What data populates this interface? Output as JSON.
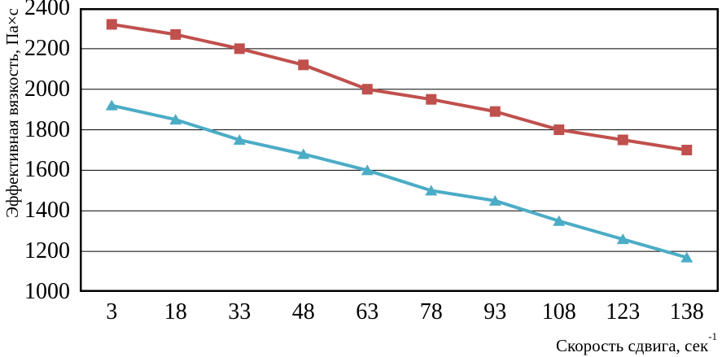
{
  "figure": {
    "background": "#ffffff",
    "axis_color": "#000000",
    "grid_color": "#000000"
  },
  "chart_data": {
    "type": "line",
    "title": "",
    "xlabel": "Скорость сдвига, сек",
    "xlabel_sup": "-1",
    "ylabel": "Эффективная вязкость, Па×с",
    "x": [
      3,
      18,
      33,
      48,
      63,
      78,
      93,
      108,
      123,
      138
    ],
    "series": [
      {
        "name": "series-red-squares",
        "marker": "square",
        "color": "#c0504d",
        "values": [
          2320,
          2270,
          2200,
          2120,
          2000,
          1950,
          1890,
          1800,
          1750,
          1700
        ]
      },
      {
        "name": "series-teal-triangles",
        "marker": "triangle",
        "color": "#4bacc6",
        "values": [
          1920,
          1850,
          1750,
          1680,
          1600,
          1500,
          1450,
          1350,
          1260,
          1170
        ]
      }
    ],
    "yticks": [
      2400,
      2200,
      2000,
      1800,
      1600,
      1400,
      1200,
      1000
    ],
    "ylim": [
      1000,
      2400
    ],
    "ytick_step": 200,
    "grid": true,
    "legend": false
  }
}
